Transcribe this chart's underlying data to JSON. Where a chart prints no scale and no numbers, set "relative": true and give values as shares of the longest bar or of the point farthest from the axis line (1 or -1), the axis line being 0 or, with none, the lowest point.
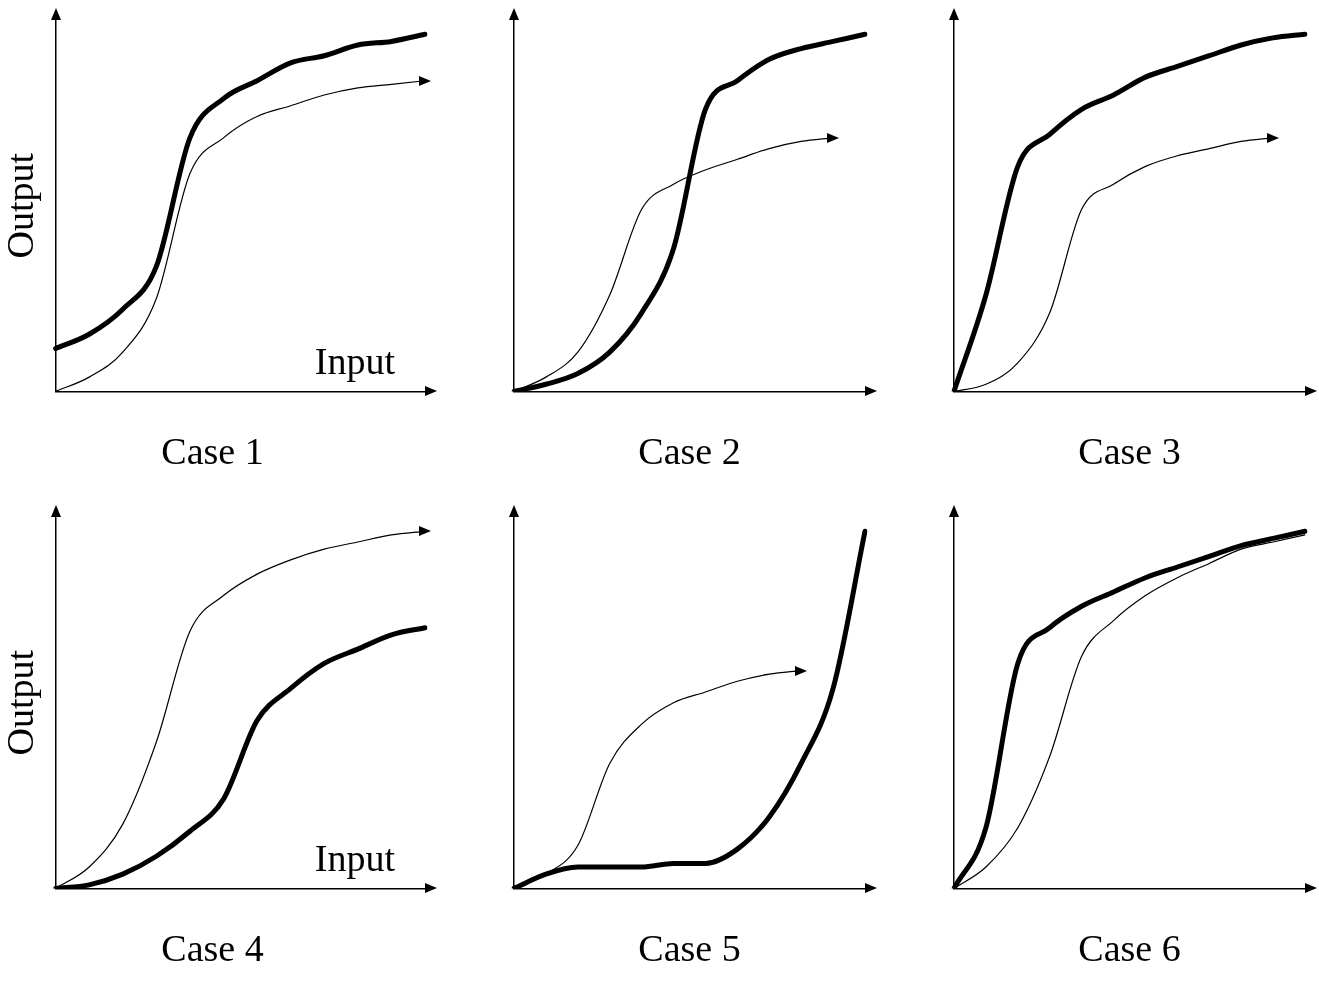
{
  "chart_data": [
    {
      "type": "line",
      "title": "Case 1",
      "xlabel": "Input",
      "ylabel": "Output",
      "relative": true,
      "grid": false,
      "legend": false,
      "categories": [
        null,
        null,
        null,
        null,
        null,
        null,
        null,
        null,
        null,
        null,
        null,
        null
      ],
      "series": [
        {
          "color": "#000000",
          "values": [
            0,
            0.04,
            0.11,
            0.26,
            0.61,
            0.71,
            0.77,
            0.8,
            0.83,
            0.85,
            0.86,
            0.87
          ]
        },
        {
          "color": "#000000",
          "values": [
            0.12,
            0.16,
            0.23,
            0.35,
            0.71,
            0.82,
            0.87,
            0.92,
            0.94,
            0.97,
            0.98,
            1
          ]
        }
      ]
    },
    {
      "type": "line",
      "title": "Case 2",
      "relative": true,
      "grid": false,
      "legend": false,
      "categories": [
        null,
        null,
        null,
        null,
        null,
        null,
        null,
        null,
        null,
        null,
        null,
        null
      ],
      "series": [
        {
          "color": "#000000",
          "values": [
            0,
            0.04,
            0.11,
            0.27,
            0.51,
            0.58,
            0.62,
            0.65,
            0.68,
            0.7,
            0.71,
            null
          ]
        },
        {
          "color": "#000000",
          "values": [
            0,
            0.02,
            0.05,
            0.11,
            0.22,
            0.4,
            0.79,
            0.87,
            0.93,
            0.96,
            0.98,
            1
          ]
        }
      ]
    },
    {
      "type": "line",
      "title": "Case 3",
      "relative": true,
      "grid": false,
      "legend": false,
      "categories": [
        null,
        null,
        null,
        null,
        null,
        null,
        null,
        null,
        null,
        null,
        null,
        null
      ],
      "series": [
        {
          "color": "#000000",
          "values": [
            0,
            0.02,
            0.08,
            0.22,
            0.51,
            0.58,
            0.63,
            0.66,
            0.68,
            0.7,
            0.71,
            null
          ]
        },
        {
          "color": "#000000",
          "values": [
            0,
            0.27,
            0.63,
            0.72,
            0.79,
            0.83,
            0.88,
            0.91,
            0.94,
            0.97,
            0.99,
            1
          ]
        }
      ]
    },
    {
      "type": "line",
      "title": "Case 4",
      "xlabel": "Input",
      "ylabel": "Output",
      "relative": true,
      "grid": false,
      "legend": false,
      "categories": [
        null,
        null,
        null,
        null,
        null,
        null,
        null,
        null,
        null,
        null,
        null,
        null
      ],
      "series": [
        {
          "color": "#000000",
          "values": [
            0,
            0.06,
            0.18,
            0.41,
            0.72,
            0.82,
            0.88,
            0.92,
            0.95,
            0.97,
            0.99,
            1
          ]
        },
        {
          "color": "#000000",
          "values": [
            0,
            0.01,
            0.04,
            0.09,
            0.16,
            0.25,
            0.47,
            0.56,
            0.63,
            0.67,
            0.71,
            0.73
          ]
        }
      ]
    },
    {
      "type": "line",
      "title": "Case 5",
      "relative": true,
      "grid": false,
      "legend": false,
      "categories": [
        null,
        null,
        null,
        null,
        null,
        null,
        null,
        null,
        null,
        null,
        null,
        null
      ],
      "series": [
        {
          "color": "#000000",
          "values": [
            0,
            0.04,
            0.12,
            0.35,
            0.46,
            0.52,
            0.55,
            0.58,
            0.6,
            0.61,
            null,
            null
          ]
        },
        {
          "color": "#000000",
          "values": [
            0,
            0.04,
            0.06,
            0.06,
            0.06,
            0.07,
            0.07,
            0.11,
            0.2,
            0.35,
            0.56,
            1
          ]
        }
      ]
    },
    {
      "type": "line",
      "title": "Case 6",
      "relative": true,
      "grid": false,
      "legend": false,
      "categories": [
        null,
        null,
        null,
        null,
        null,
        null,
        null,
        null,
        null,
        null,
        null,
        null
      ],
      "series": [
        {
          "color": "#000000",
          "values": [
            0,
            0.06,
            0.17,
            0.37,
            0.65,
            0.75,
            0.82,
            0.87,
            0.91,
            0.95,
            0.97,
            0.99
          ]
        },
        {
          "color": "#000000",
          "values": [
            0,
            0.17,
            0.63,
            0.73,
            0.79,
            0.83,
            0.87,
            0.9,
            0.93,
            0.96,
            0.98,
            1
          ]
        }
      ]
    }
  ]
}
